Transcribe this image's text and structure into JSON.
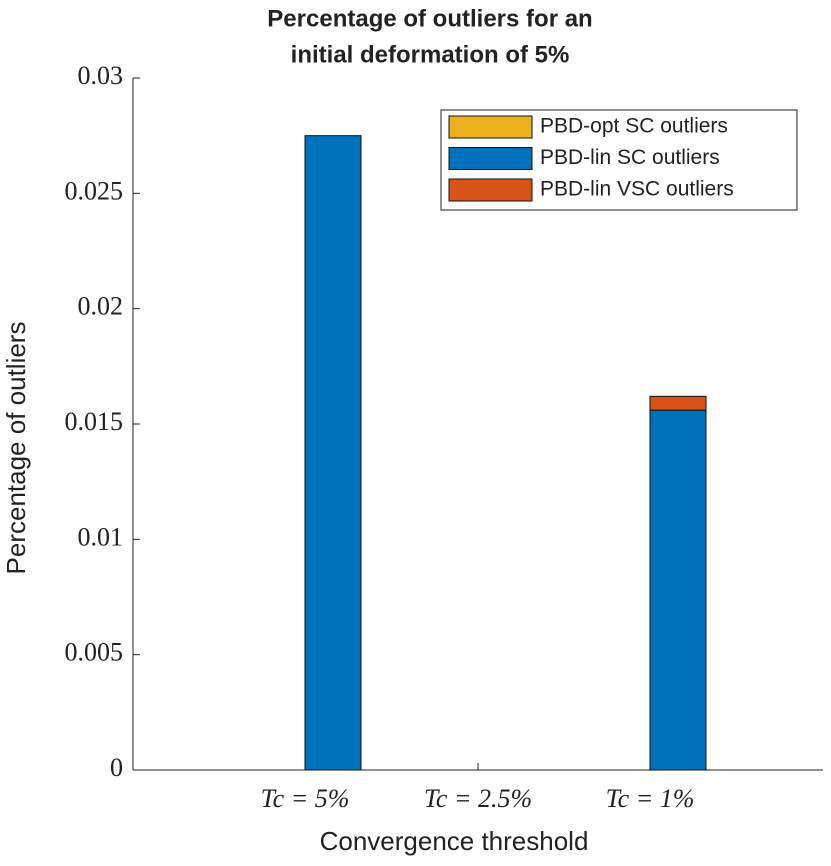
{
  "chart_data": {
    "type": "bar",
    "title": [
      "Percentage of outliers for an",
      "initial deformation of 5%"
    ],
    "x_label": "Convergence threshold",
    "y_label": "Percentage of outliers",
    "categories": [
      "Tc = 5%",
      "Tc = 2.5%",
      "Tc = 1%"
    ],
    "series": [
      {
        "name": "PBD-opt SC outliers",
        "color": "#EDB120",
        "values": [
          0,
          0,
          0
        ]
      },
      {
        "name": "PBD-lin SC outliers",
        "color": "#0072BD",
        "values": [
          0.0275,
          0,
          0.0156
        ]
      },
      {
        "name": "PBD-lin VSC outliers",
        "color": "#D95319",
        "values": [
          0,
          0,
          0.0006
        ]
      }
    ],
    "stacked": true,
    "ylim": [
      0,
      0.03
    ],
    "yticks": [
      0,
      0.005,
      0.01,
      0.015,
      0.02,
      0.025,
      0.03
    ],
    "grid": false,
    "legend": "top-right"
  }
}
